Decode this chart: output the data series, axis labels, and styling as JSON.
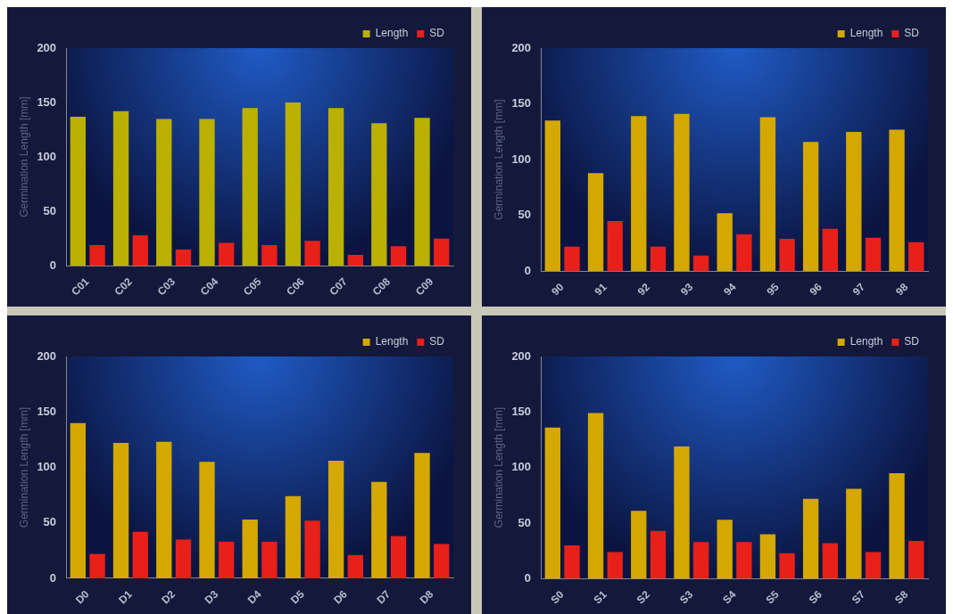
{
  "chart_data": [
    {
      "type": "bar",
      "ylabel": "Germination Length [mm]",
      "categories": [
        "C01",
        "C02",
        "C03",
        "C04",
        "C05",
        "C06",
        "C07",
        "C08",
        "C09"
      ],
      "series": [
        {
          "name": "Length",
          "color": "#b9b000",
          "values": [
            137,
            142,
            135,
            135,
            145,
            150,
            145,
            131,
            136
          ]
        },
        {
          "name": "SD",
          "color": "#e8201a",
          "values": [
            19,
            28,
            15,
            21,
            19,
            23,
            10,
            18,
            25
          ]
        }
      ],
      "ylim": [
        0,
        200
      ],
      "yticks": [
        0,
        50,
        100,
        150,
        200
      ],
      "legend": "top right"
    },
    {
      "type": "bar",
      "ylabel": "Germination Length [mm]",
      "categories": [
        "90",
        "91",
        "92",
        "93",
        "94",
        "95",
        "96",
        "97",
        "98"
      ],
      "series": [
        {
          "name": "Length",
          "color": "#d4a800",
          "values": [
            135,
            88,
            139,
            141,
            52,
            138,
            116,
            125,
            127
          ]
        },
        {
          "name": "SD",
          "color": "#e8201a",
          "values": [
            22,
            45,
            22,
            14,
            33,
            29,
            38,
            30,
            26
          ]
        }
      ],
      "ylim": [
        0,
        200
      ],
      "yticks": [
        0,
        50,
        100,
        150,
        200
      ],
      "legend": "top right"
    },
    {
      "type": "bar",
      "ylabel": "Germination Length [mm]",
      "categories": [
        "D0",
        "D1",
        "D2",
        "D3",
        "D4",
        "D5",
        "D6",
        "D7",
        "D8"
      ],
      "series": [
        {
          "name": "Length",
          "color": "#d4a800",
          "values": [
            140,
            122,
            123,
            105,
            53,
            74,
            106,
            87,
            113
          ]
        },
        {
          "name": "SD",
          "color": "#e8201a",
          "values": [
            22,
            42,
            35,
            33,
            33,
            52,
            21,
            38,
            31
          ]
        }
      ],
      "ylim": [
        0,
        200
      ],
      "yticks": [
        0,
        50,
        100,
        150,
        200
      ],
      "legend": "top right"
    },
    {
      "type": "bar",
      "ylabel": "Germination Length [mm]",
      "categories": [
        "S0",
        "S1",
        "S2",
        "S3",
        "S4",
        "S5",
        "S6",
        "S7",
        "S8"
      ],
      "series": [
        {
          "name": "Length",
          "color": "#d4a800",
          "values": [
            136,
            149,
            61,
            119,
            53,
            40,
            72,
            81,
            95
          ]
        },
        {
          "name": "SD",
          "color": "#e8201a",
          "values": [
            30,
            24,
            43,
            33,
            33,
            23,
            32,
            24,
            34
          ]
        }
      ],
      "ylim": [
        0,
        200
      ],
      "yticks": [
        0,
        50,
        100,
        150,
        200
      ],
      "legend": "top right"
    }
  ]
}
